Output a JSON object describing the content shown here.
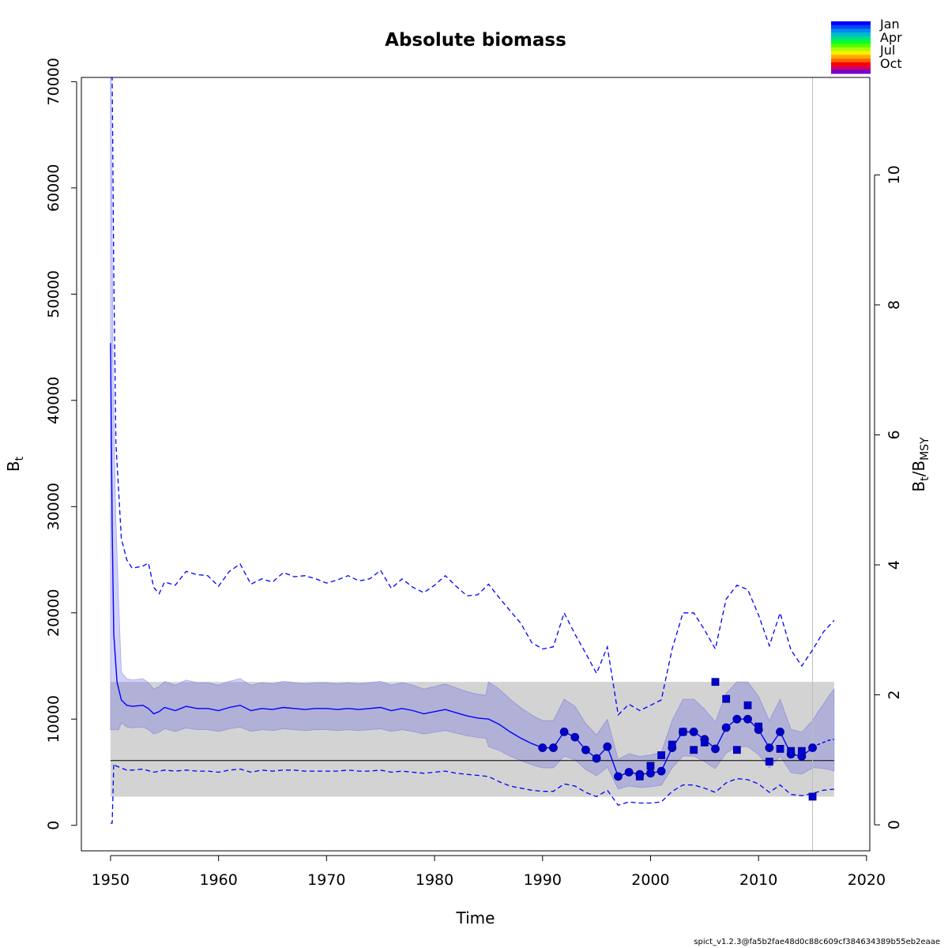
{
  "chart_data": {
    "type": "line",
    "title": "Absolute biomass",
    "xlabel": "Time",
    "ylabel": "B",
    "ylabel_sub": "t",
    "y2label_parts": [
      "B",
      "t",
      "/B",
      "MSY"
    ],
    "xlim": [
      1947.3,
      2020.3
    ],
    "ylim": [
      -2400,
      70400
    ],
    "y2lim": [
      -0.4,
      11.5
    ],
    "xticks": [
      1950,
      1960,
      1970,
      1980,
      1990,
      2000,
      2010,
      2020
    ],
    "yticks": [
      0,
      10000,
      20000,
      30000,
      40000,
      50000,
      60000,
      70000
    ],
    "y2ticks": [
      0,
      2,
      4,
      6,
      8,
      10
    ],
    "bmsy": 6100,
    "bmsy_band": [
      2700,
      13500
    ],
    "grey_vline_x": 2015,
    "series": [
      {
        "name": "estimate",
        "color": "#0000ff",
        "x": [
          1950,
          1950.15,
          1950.3,
          1950.6,
          1951,
          1951.5,
          1952,
          1953,
          1953.5,
          1954,
          1954.5,
          1955,
          1956,
          1957,
          1958,
          1959,
          1960,
          1961,
          1962,
          1963,
          1964,
          1965,
          1966,
          1967,
          1968,
          1969,
          1970,
          1971,
          1972,
          1973,
          1974,
          1975,
          1976,
          1977,
          1978,
          1979,
          1980,
          1981,
          1982,
          1983,
          1984,
          1985,
          1986,
          1987,
          1988,
          1989,
          1990,
          1991,
          1992,
          1993,
          1994,
          1995,
          1996,
          1997,
          1998,
          1999,
          2000,
          2001,
          2002,
          2003,
          2004,
          2005,
          2006,
          2007,
          2008,
          2009,
          2010,
          2011,
          2012,
          2013,
          2014,
          2015
        ],
        "values": [
          45400,
          28000,
          18000,
          13500,
          11800,
          11300,
          11200,
          11300,
          11000,
          10500,
          10700,
          11100,
          10800,
          11200,
          11000,
          11000,
          10800,
          11100,
          11300,
          10800,
          11000,
          10900,
          11100,
          11000,
          10900,
          11000,
          11000,
          10900,
          11000,
          10900,
          11000,
          11100,
          10800,
          11000,
          10800,
          10500,
          10700,
          10900,
          10600,
          10300,
          10100,
          10000,
          9500,
          8800,
          8200,
          7700,
          7300,
          7300,
          8800,
          8300,
          7100,
          6300,
          7400,
          4600,
          5000,
          4800,
          4900,
          5100,
          7300,
          8800,
          8800,
          8100,
          7200,
          9200,
          10000,
          10000,
          9000,
          7300,
          8800,
          6700,
          6500,
          7300
        ]
      },
      {
        "name": "forecast",
        "color": "#0000ff",
        "x": [
          2015,
          2015.5,
          2016,
          2016.5,
          2017
        ],
        "values": [
          7300,
          7600,
          7800,
          8000,
          8100
        ]
      },
      {
        "name": "upper CI",
        "color": "#0000ff",
        "x": [
          1950,
          1950.15,
          1950.3,
          1950.5,
          1951,
          1951.5,
          1952,
          1953,
          1953.5,
          1954,
          1954.5,
          1955,
          1956,
          1957,
          1958,
          1959,
          1960,
          1961,
          1962,
          1963,
          1964,
          1965,
          1966,
          1967,
          1968,
          1969,
          1970,
          1971,
          1972,
          1973,
          1974,
          1975,
          1976,
          1977,
          1978,
          1979,
          1980,
          1981,
          1982,
          1983,
          1984,
          1985,
          1986,
          1987,
          1988,
          1989,
          1990,
          1991,
          1992,
          1993,
          1994,
          1995,
          1996,
          1997,
          1998,
          1999,
          2000,
          2001,
          2002,
          2003,
          2004,
          2005,
          2006,
          2007,
          2008,
          2009,
          2010,
          2011,
          2012,
          2013,
          2014,
          2015,
          2016,
          2017
        ],
        "values": [
          70400,
          70400,
          52000,
          36000,
          27000,
          25000,
          24200,
          24400,
          24700,
          22400,
          21800,
          22900,
          22600,
          23900,
          23600,
          23500,
          22500,
          23900,
          24600,
          22700,
          23200,
          22900,
          23800,
          23400,
          23500,
          23200,
          22800,
          23100,
          23500,
          23000,
          23200,
          24000,
          22300,
          23200,
          22400,
          21900,
          22600,
          23500,
          22500,
          21600,
          21700,
          22700,
          21400,
          20200,
          19000,
          17200,
          16600,
          16800,
          20000,
          18000,
          16200,
          14300,
          16800,
          10400,
          11400,
          10800,
          11300,
          11800,
          16600,
          20000,
          20000,
          18400,
          16600,
          21300,
          22600,
          22200,
          19800,
          16900,
          20000,
          16500,
          15000,
          16500,
          18200,
          19300
        ]
      },
      {
        "name": "lower CI",
        "color": "#0000ff",
        "x": [
          1950,
          1950.15,
          1950.3,
          1950.5,
          1951,
          1951.5,
          1952,
          1953,
          1954,
          1955,
          1956,
          1957,
          1958,
          1959,
          1960,
          1961,
          1962,
          1963,
          1964,
          1965,
          1966,
          1967,
          1968,
          1969,
          1970,
          1971,
          1972,
          1973,
          1974,
          1975,
          1976,
          1977,
          1978,
          1979,
          1980,
          1981,
          1982,
          1983,
          1984,
          1985,
          1986,
          1987,
          1988,
          1989,
          1990,
          1991,
          1992,
          1993,
          1994,
          1995,
          1996,
          1997,
          1998,
          1999,
          2000,
          2001,
          2002,
          2003,
          2004,
          2005,
          2006,
          2007,
          2008,
          2009,
          2010,
          2011,
          2012,
          2013,
          2014,
          2015,
          2016,
          2017
        ],
        "values": [
          200,
          200,
          5800,
          5600,
          5400,
          5200,
          5200,
          5300,
          5000,
          5200,
          5100,
          5200,
          5100,
          5100,
          5000,
          5200,
          5300,
          5000,
          5200,
          5100,
          5200,
          5200,
          5100,
          5100,
          5100,
          5100,
          5200,
          5100,
          5100,
          5200,
          5000,
          5100,
          5000,
          4900,
          5000,
          5100,
          4900,
          4800,
          4700,
          4600,
          4100,
          3700,
          3500,
          3300,
          3200,
          3200,
          3900,
          3700,
          3100,
          2700,
          3300,
          1900,
          2200,
          2100,
          2100,
          2200,
          3200,
          3800,
          3800,
          3500,
          3100,
          4000,
          4400,
          4300,
          3900,
          3100,
          3800,
          2900,
          2800,
          3000,
          3300,
          3400
        ]
      }
    ],
    "points": {
      "circles": {
        "color": "#0000cd",
        "x": [
          1990,
          1991,
          1992,
          1993,
          1994,
          1995,
          1996,
          1997,
          1998,
          1999,
          2000,
          2001,
          2002,
          2003,
          2004,
          2005,
          2006,
          2007,
          2008,
          2009,
          2010,
          2011,
          2012,
          2013,
          2014,
          2015
        ],
        "values": [
          7300,
          7300,
          8800,
          8300,
          7100,
          6300,
          7400,
          4600,
          5000,
          4800,
          4900,
          5100,
          7300,
          8800,
          8800,
          8100,
          7200,
          9200,
          10000,
          10000,
          9000,
          7300,
          8800,
          6700,
          6500,
          7300
        ]
      },
      "squares": {
        "color": "#0000cd",
        "x": [
          1999,
          2000,
          2001,
          2002,
          2003,
          2004,
          2005,
          2006,
          2007,
          2008,
          2009,
          2010,
          2011,
          2012,
          2013,
          2014,
          2015
        ],
        "values": [
          4600,
          5600,
          6600,
          7600,
          8800,
          7100,
          7800,
          13500,
          11900,
          7100,
          11300,
          9300,
          6000,
          7200,
          7000,
          7000,
          2700
        ]
      }
    },
    "legend": {
      "position": "top-right",
      "labels": [
        "Jan",
        "Apr",
        "Jul",
        "Oct"
      ],
      "colors": [
        "#0000ff",
        "#0044ff",
        "#0088ee",
        "#00bbcc",
        "#00dd88",
        "#00ff33",
        "#55ff00",
        "#aaff00",
        "#ffee00",
        "#ffaa00",
        "#ff6600",
        "#ff0000",
        "#cc0066",
        "#7700cc"
      ]
    }
  },
  "footer_text": "spict_v1.2.3@fa5b2fae48d0c88c609cf384634389b55eb2eaae"
}
